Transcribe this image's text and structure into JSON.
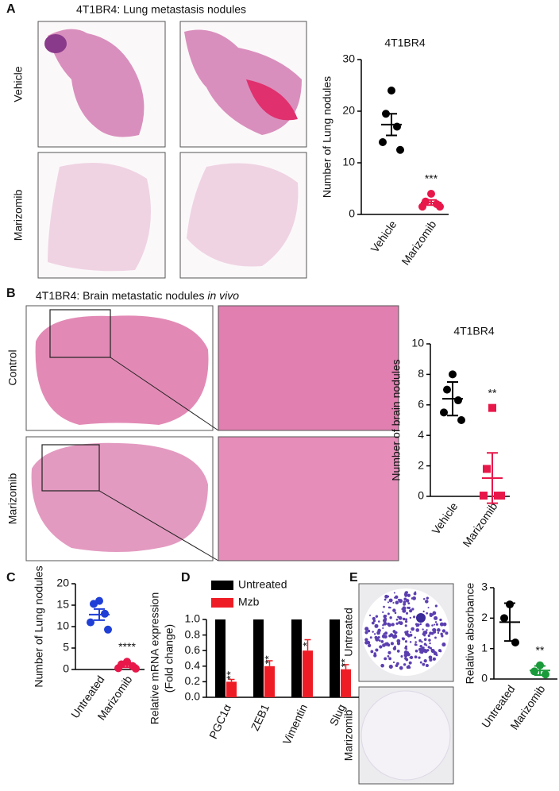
{
  "panels": {
    "A": {
      "label": "A",
      "title": "4T1BR4: Lung metastasis nodules",
      "rows": [
        "Vehicle",
        "Marizomib"
      ]
    },
    "B": {
      "label": "B",
      "title": "4T1BR4: Brain metastatic nodules ",
      "title_italic": "in vivo",
      "rows": [
        "Control",
        "Marizomib"
      ]
    },
    "C": {
      "label": "C"
    },
    "D": {
      "label": "D"
    },
    "E": {
      "label": "E",
      "rows": [
        "Untreated",
        "Marizomib"
      ]
    }
  },
  "chart_data": [
    {
      "type": "dot",
      "title": "4T1BR4",
      "y_label": "Number of Lung nodules",
      "ylim": [
        0,
        30
      ],
      "yticks": [
        0,
        10,
        20,
        30
      ],
      "groups": [
        {
          "name": "Vehicle",
          "color": "#000000",
          "marker": "circle",
          "values": [
            24,
            19.5,
            17,
            14,
            12.5
          ],
          "mean": 17.4,
          "error": 2.1
        },
        {
          "name": "Marizomib",
          "color": "#e8174a",
          "marker": "circle",
          "values": [
            4,
            2.5,
            2,
            1.5,
            1.5
          ],
          "mean": 2.3,
          "error": 0.5,
          "annotation": "***"
        }
      ]
    },
    {
      "type": "dot",
      "title": "4T1BR4",
      "y_label": "Number of brain nodules",
      "ylim": [
        0,
        10
      ],
      "yticks": [
        0,
        2,
        4,
        6,
        8,
        10
      ],
      "groups": [
        {
          "name": "Vehicle",
          "color": "#000000",
          "marker": "circle",
          "values": [
            8,
            7,
            6.3,
            5.5,
            5
          ],
          "mean": 6.4,
          "error": 1.1
        },
        {
          "name": "Marizomib",
          "color": "#e8174a",
          "marker": "square",
          "values": [
            5.8,
            1.8,
            0.05,
            0.05,
            0.05
          ],
          "mean": 1.2,
          "error": 1.65,
          "annotation": "**"
        }
      ]
    },
    {
      "type": "dot",
      "y_label": "Number of Lung nodules",
      "ylim": [
        0,
        20
      ],
      "yticks": [
        0,
        5,
        10,
        15,
        20
      ],
      "groups": [
        {
          "name": "Untreated",
          "color": "#1f3fd6",
          "marker": "circle",
          "values": [
            16,
            15.3,
            13,
            11,
            9.3
          ],
          "mean": 12.8,
          "error": 1.3
        },
        {
          "name": "Marizomib",
          "color": "#e8174a",
          "marker": "circle",
          "values": [
            1.8,
            1.2,
            0.8,
            0.3,
            0.2
          ],
          "mean": 1.0,
          "error": 0.5,
          "annotation": "****"
        }
      ]
    },
    {
      "type": "bar",
      "y_label": [
        "Relative mRNA expression",
        "(Fold change)"
      ],
      "categories": [
        "PGC1α",
        "ZEB1",
        "Vimentin",
        "Slug"
      ],
      "ylim": [
        0,
        1
      ],
      "yticks": [
        {
          "value": 0,
          "label": "0.0"
        },
        0.2,
        0.4,
        0.6,
        0.8,
        {
          "value": 1,
          "label": "1.0"
        }
      ],
      "series": [
        {
          "name": "Untreated",
          "color": "#000000",
          "values": [
            1,
            1,
            1,
            1
          ]
        },
        {
          "name": "Mzb",
          "color": "#ee1c25",
          "values": [
            0.2,
            0.4,
            0.6,
            0.36
          ],
          "errors": [
            0.03,
            0.07,
            0.14,
            0.06
          ],
          "annotations": [
            "**",
            "**",
            "*",
            "**"
          ]
        }
      ]
    },
    {
      "type": "dot",
      "y_label": "Relative absorbance",
      "ylim": [
        0,
        3
      ],
      "yticks": [
        0,
        1,
        2,
        3
      ],
      "groups": [
        {
          "name": "Untreated",
          "color": "#000000",
          "marker": "circle",
          "values": [
            2.45,
            2.0,
            1.2
          ],
          "mean": 1.87,
          "error": 0.62
        },
        {
          "name": "Marizomib",
          "color": "#1a9a3a",
          "marker": "circle",
          "values": [
            0.45,
            0.25,
            0.15
          ],
          "mean": 0.28,
          "error": 0.15,
          "annotation": "**"
        }
      ]
    }
  ]
}
